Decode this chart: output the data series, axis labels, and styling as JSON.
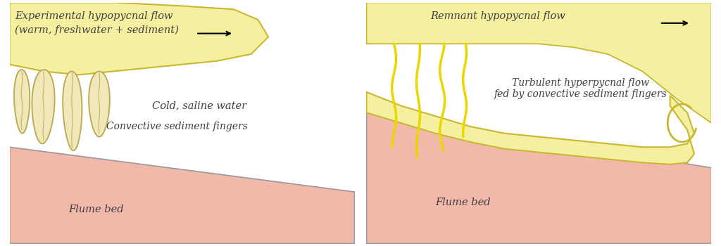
{
  "bg_color": "#ffffff",
  "water_color": "#8db5c8",
  "bed_color": "#f2b8aa",
  "plume_color": "#f5f0a0",
  "plume_edge": "#c8b830",
  "finger_fill": "#f0e8b8",
  "finger_edge": "#b8a850",
  "yellow_line": "#e8d800",
  "text_color": "#404040",
  "bed_edge": "#999999",
  "p1_label1": "Experimental hypopycnal flow →",
  "p1_label2": "(warm, freshwater + sediment)",
  "p1_water_label": "Cold, saline water",
  "p1_finger_label": "Convective sediment fingers",
  "p1_bed_label": "Flume bed",
  "p2_plume_label": "Remnant hypopycnal flow",
  "p2_flow_label": "Turbulent hyperpycnal flow\nfed by convective sediment fingers",
  "p2_bed_label": "Flume bed",
  "fontsize": 10.5
}
